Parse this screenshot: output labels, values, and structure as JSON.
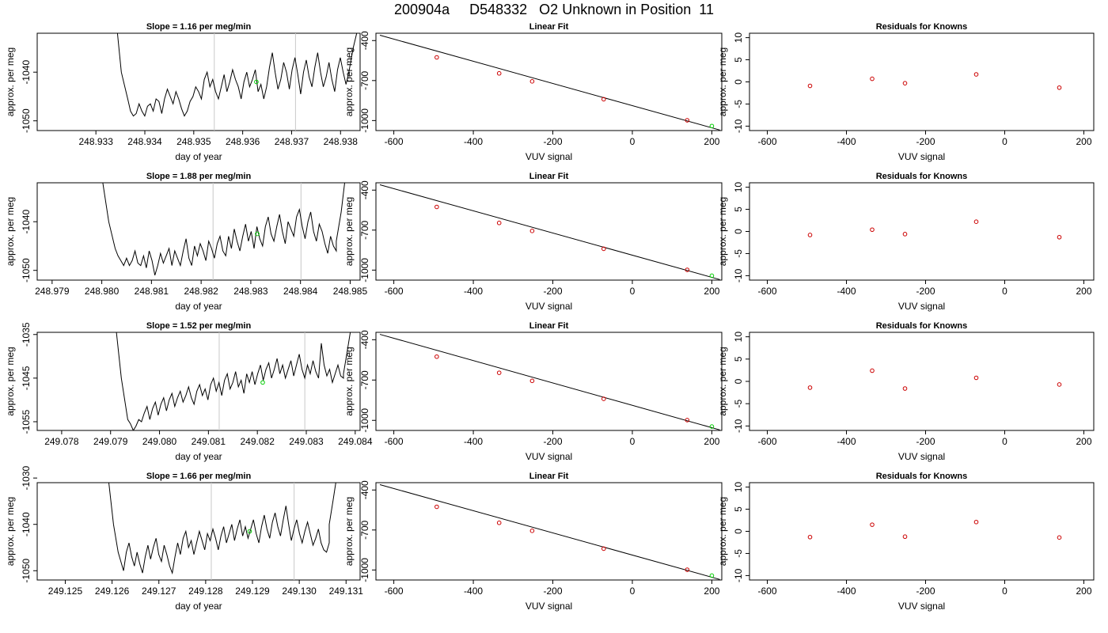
{
  "figure": {
    "title": "200904a     D548332   O2 Unknown in Position  11"
  },
  "colors": {
    "trace": "#000000",
    "gridline": "#c8c8c8",
    "known_point": "#cc0000",
    "unknown_point": "#00cc00",
    "fit_line": "#000000"
  },
  "chart_data": [
    {
      "type": "line",
      "panel": "timeseries",
      "row": 1,
      "title": "Slope =  1.16  per meg/min",
      "xlabel": "day of year",
      "ylabel": "approx. per meg",
      "xlim": [
        248.9318,
        248.9384
      ],
      "ylim": [
        -1052,
        -1032
      ],
      "xticks": [
        "248.933",
        "248.934",
        "248.935",
        "248.936",
        "248.937",
        "248.938"
      ],
      "xtick_values": [
        248.933,
        248.934,
        248.935,
        248.936,
        248.937,
        248.938
      ],
      "yticks": [
        "-1040",
        "-1050"
      ],
      "ytick_values": [
        -1040,
        -1050
      ],
      "vlines": [
        248.93542,
        248.93708
      ],
      "x_start": 248.93365,
      "x_end": 248.93817,
      "values": [
        -1045.5,
        -1048,
        -1049,
        -1048.5,
        -1046.5,
        -1048,
        -1049,
        -1047,
        -1046.5,
        -1048,
        -1045.5,
        -1046,
        -1048.5,
        -1045.5,
        -1043.5,
        -1045,
        -1046.5,
        -1044,
        -1045.5,
        -1047.5,
        -1049,
        -1048,
        -1046,
        -1045,
        -1043,
        -1044,
        -1045.5,
        -1041.5,
        -1040,
        -1043,
        -1041.5,
        -1044,
        -1045.5,
        -1043,
        -1040.5,
        -1044,
        -1042,
        -1039.5,
        -1041.5,
        -1043,
        -1045.5,
        -1042,
        -1040,
        -1043,
        -1041.5,
        -1039.5,
        -1044,
        -1042.5,
        -1045.5,
        -1043,
        -1039,
        -1036,
        -1040,
        -1043.5,
        -1041.5,
        -1038,
        -1040,
        -1043.5,
        -1039.5,
        -1037,
        -1040.5,
        -1044.5,
        -1040,
        -1037.5,
        -1041,
        -1043,
        -1039,
        -1036,
        -1040,
        -1043,
        -1041,
        -1038,
        -1041.5,
        -1044,
        -1039.5,
        -1037,
        -1040,
        -1042.5,
        -1040
      ],
      "lead_in": [
        [
          248.93344,
          -1032
        ],
        [
          248.93352,
          -1040
        ],
        [
          248.93365,
          -1045.5
        ]
      ],
      "lead_out": [
        [
          248.93817,
          -1040
        ],
        [
          248.93826,
          -1035
        ],
        [
          248.93833,
          -1032
        ]
      ],
      "unknown_point": [
        248.93628,
        -1042
      ]
    },
    {
      "type": "scatter",
      "panel": "linear-fit",
      "row": 1,
      "title": "Linear Fit",
      "xlabel": "VUV signal",
      "ylabel": "approx. per meg",
      "xlim": [
        -645,
        225
      ],
      "ylim": [
        -1075,
        -345
      ],
      "xticks": [
        "-600",
        "-400",
        "-200",
        "0",
        "200"
      ],
      "xtick_values": [
        -600,
        -400,
        -200,
        0,
        200
      ],
      "yticks": [
        "-400",
        "-700",
        "-1000"
      ],
      "ytick_values": [
        -400,
        -700,
        -1000
      ],
      "knowns": {
        "x": [
          -492,
          -335,
          -252,
          -72,
          138
        ],
        "y": [
          -526,
          -646,
          -706,
          -840,
          -998
        ]
      },
      "unknown": {
        "x": [
          200
        ],
        "y": [
          -1041
        ]
      },
      "fit_line": [
        [
          -635,
          -360
        ],
        [
          220,
          -1071
        ]
      ]
    },
    {
      "type": "scatter",
      "panel": "residuals",
      "row": 1,
      "title": "Residuals for Knowns",
      "xlabel": "VUV signal",
      "ylabel": "approx. per meg",
      "xlim": [
        -645,
        225
      ],
      "ylim": [
        -11,
        11
      ],
      "xticks": [
        "-600",
        "-400",
        "-200",
        "0",
        "200"
      ],
      "xtick_values": [
        -600,
        -400,
        -200,
        0,
        200
      ],
      "yticks": [
        "-10",
        "-5",
        "0",
        "5",
        "10"
      ],
      "ytick_values": [
        -10,
        -5,
        0,
        5,
        10
      ],
      "x": [
        -492,
        -335,
        -252,
        -72,
        138
      ],
      "y": [
        -0.9,
        0.7,
        -0.3,
        1.7,
        -1.3
      ]
    },
    {
      "type": "line",
      "panel": "timeseries",
      "row": 2,
      "title": "Slope =  1.88  per meg/min",
      "xlabel": "day of year",
      "ylabel": "approx. per meg",
      "xlim": [
        248.9787,
        248.9852
      ],
      "ylim": [
        -1052,
        -1032
      ],
      "xticks": [
        "248.979",
        "248.980",
        "248.981",
        "248.982",
        "248.983",
        "248.984",
        "248.985"
      ],
      "xtick_values": [
        248.979,
        248.98,
        248.981,
        248.982,
        248.983,
        248.984,
        248.985
      ],
      "yticks": [
        "-1040",
        "-1050"
      ],
      "ytick_values": [
        -1040,
        -1050
      ],
      "vlines": [
        248.98224,
        248.98401
      ],
      "x_start": 248.98027,
      "x_end": 248.98472,
      "values": [
        -1045.5,
        -1047,
        -1048,
        -1049,
        -1047.5,
        -1049,
        -1048,
        -1046,
        -1048.5,
        -1049,
        -1047,
        -1049.5,
        -1046,
        -1048,
        -1051,
        -1049,
        -1046.5,
        -1048.5,
        -1047,
        -1045.5,
        -1049,
        -1046,
        -1047.5,
        -1049,
        -1046,
        -1043.5,
        -1047.5,
        -1049,
        -1045,
        -1047,
        -1044.5,
        -1046,
        -1048,
        -1044,
        -1045.5,
        -1047.5,
        -1044.5,
        -1043,
        -1046,
        -1047,
        -1043,
        -1045.5,
        -1041.5,
        -1044,
        -1046,
        -1043,
        -1040.5,
        -1044,
        -1042,
        -1045.5,
        -1041,
        -1043.5,
        -1045,
        -1041,
        -1039,
        -1042.5,
        -1044,
        -1041,
        -1038.5,
        -1042,
        -1044.5,
        -1040,
        -1041.5,
        -1043,
        -1039,
        -1037.5,
        -1041,
        -1043.5,
        -1040,
        -1038,
        -1042,
        -1044,
        -1040.5,
        -1042,
        -1044.5,
        -1046.5,
        -1043,
        -1045,
        -1046
      ],
      "lead_in": [
        [
          248.98002,
          -1032
        ],
        [
          248.98014,
          -1040
        ],
        [
          248.98027,
          -1045.5
        ]
      ],
      "lead_out": [
        [
          248.98472,
          -1044
        ],
        [
          248.98482,
          -1038
        ],
        [
          248.98489,
          -1032
        ]
      ],
      "unknown_point": [
        248.98313,
        -1042.5
      ]
    },
    {
      "type": "scatter",
      "panel": "linear-fit",
      "row": 2,
      "title": "Linear Fit",
      "xlabel": "VUV signal",
      "ylabel": "approx. per meg",
      "xlim": [
        -645,
        225
      ],
      "ylim": [
        -1075,
        -345
      ],
      "xticks": [
        "-600",
        "-400",
        "-200",
        "0",
        "200"
      ],
      "xtick_values": [
        -600,
        -400,
        -200,
        0,
        200
      ],
      "yticks": [
        "-400",
        "-700",
        "-1000"
      ],
      "ytick_values": [
        -400,
        -700,
        -1000
      ],
      "knowns": {
        "x": [
          -492,
          -335,
          -252,
          -72,
          138
        ],
        "y": [
          -526,
          -646,
          -706,
          -840,
          -998
        ]
      },
      "unknown": {
        "x": [
          200
        ],
        "y": [
          -1042
        ]
      },
      "fit_line": [
        [
          -635,
          -360
        ],
        [
          220,
          -1071
        ]
      ]
    },
    {
      "type": "scatter",
      "panel": "residuals",
      "row": 2,
      "title": "Residuals for Knowns",
      "xlabel": "VUV signal",
      "ylabel": "approx. per meg",
      "xlim": [
        -645,
        225
      ],
      "ylim": [
        -11,
        11
      ],
      "xticks": [
        "-600",
        "-400",
        "-200",
        "0",
        "200"
      ],
      "xtick_values": [
        -600,
        -400,
        -200,
        0,
        200
      ],
      "yticks": [
        "-10",
        "-5",
        "0",
        "5",
        "10"
      ],
      "ytick_values": [
        -10,
        -5,
        0,
        5,
        10
      ],
      "x": [
        -492,
        -335,
        -252,
        -72,
        138
      ],
      "y": [
        -0.8,
        0.4,
        -0.6,
        2.2,
        -1.3
      ]
    },
    {
      "type": "line",
      "panel": "timeseries",
      "row": 3,
      "title": "Slope =  1.52  per meg/min",
      "xlabel": "day of year",
      "ylabel": "approx. per meg",
      "xlim": [
        249.0775,
        249.0841
      ],
      "ylim": [
        -1057,
        -1034.5
      ],
      "xticks": [
        "249.078",
        "249.079",
        "249.080",
        "249.081",
        "249.082",
        "249.083",
        "249.084"
      ],
      "xtick_values": [
        249.078,
        249.079,
        249.08,
        249.081,
        249.082,
        249.083,
        249.084
      ],
      "yticks": [
        "-1035",
        "-1045",
        "-1055"
      ],
      "ytick_values": [
        -1035,
        -1045,
        -1055
      ],
      "vlines": [
        249.08122,
        249.08297
      ],
      "x_start": 249.07935,
      "x_end": 249.08376,
      "values": [
        -1054.5,
        -1055.5,
        -1057,
        -1056,
        -1054.5,
        -1055,
        -1053,
        -1051.5,
        -1054.5,
        -1052,
        -1050.5,
        -1053.5,
        -1051,
        -1049.5,
        -1052.5,
        -1050,
        -1048.5,
        -1051.5,
        -1049.5,
        -1048,
        -1050.5,
        -1049,
        -1047,
        -1049.5,
        -1051,
        -1048,
        -1046.5,
        -1049,
        -1047.5,
        -1050,
        -1046.5,
        -1045,
        -1048,
        -1046,
        -1049,
        -1045.5,
        -1044,
        -1047.5,
        -1046,
        -1043.5,
        -1047,
        -1045.5,
        -1048.5,
        -1044,
        -1046,
        -1043.5,
        -1046.5,
        -1044,
        -1042,
        -1045.5,
        -1043,
        -1041.5,
        -1045,
        -1043,
        -1040.5,
        -1044,
        -1042,
        -1045,
        -1043,
        -1041,
        -1044.5,
        -1042,
        -1039.5,
        -1043,
        -1045,
        -1042,
        -1044,
        -1041,
        -1043.5,
        -1045,
        -1037,
        -1042,
        -1044.5,
        -1043,
        -1046,
        -1044,
        -1042,
        -1044.5,
        -1045
      ],
      "lead_in": [
        [
          249.07912,
          -1034.5
        ],
        [
          249.07922,
          -1045
        ],
        [
          249.07935,
          -1054.5
        ]
      ],
      "lead_out": [
        [
          249.08376,
          -1044
        ],
        [
          249.08385,
          -1038
        ],
        [
          249.0839,
          -1034.5
        ]
      ],
      "unknown_point": [
        249.08211,
        -1046
      ]
    },
    {
      "type": "scatter",
      "panel": "linear-fit",
      "row": 3,
      "title": "Linear Fit",
      "xlabel": "VUV signal",
      "ylabel": "approx. per meg",
      "xlim": [
        -645,
        225
      ],
      "ylim": [
        -1075,
        -345
      ],
      "xticks": [
        "-600",
        "-400",
        "-200",
        "0",
        "200"
      ],
      "xtick_values": [
        -600,
        -400,
        -200,
        0,
        200
      ],
      "yticks": [
        "-400",
        "-700",
        "-1000"
      ],
      "ytick_values": [
        -400,
        -700,
        -1000
      ],
      "knowns": {
        "x": [
          -492,
          -335,
          -252,
          -72,
          138
        ],
        "y": [
          -526,
          -646,
          -706,
          -840,
          -998
        ]
      },
      "unknown": {
        "x": [
          200
        ],
        "y": [
          -1046
        ]
      },
      "fit_line": [
        [
          -635,
          -360
        ],
        [
          220,
          -1071
        ]
      ]
    },
    {
      "type": "scatter",
      "panel": "residuals",
      "row": 3,
      "title": "Residuals for Knowns",
      "xlabel": "VUV signal",
      "ylabel": "approx. per meg",
      "xlim": [
        -645,
        225
      ],
      "ylim": [
        -11,
        11
      ],
      "xticks": [
        "-600",
        "-400",
        "-200",
        "0",
        "200"
      ],
      "xtick_values": [
        -600,
        -400,
        -200,
        0,
        200
      ],
      "yticks": [
        "-10",
        "-5",
        "0",
        "5",
        "10"
      ],
      "ytick_values": [
        -10,
        -5,
        0,
        5,
        10
      ],
      "x": [
        -492,
        -335,
        -252,
        -72,
        138
      ],
      "y": [
        -1.4,
        2.4,
        -1.6,
        0.8,
        -0.7
      ]
    },
    {
      "type": "line",
      "panel": "timeseries",
      "row": 4,
      "title": "Slope =  1.66  per meg/min",
      "xlabel": "day of year",
      "ylabel": "approx. per meg",
      "xlim": [
        249.1244,
        249.1313
      ],
      "ylim": [
        -1052,
        -1031
      ],
      "xticks": [
        "249.125",
        "249.126",
        "249.127",
        "249.128",
        "249.129",
        "249.130",
        "249.131"
      ],
      "xtick_values": [
        249.125,
        249.126,
        249.127,
        249.128,
        249.129,
        249.13,
        249.131
      ],
      "yticks": [
        "-1030",
        "-1040",
        "-1050"
      ],
      "ytick_values": [
        -1030,
        -1040,
        -1050
      ],
      "vlines": [
        249.12812,
        249.12989
      ],
      "x_start": 249.12613,
      "x_end": 249.13064,
      "values": [
        -1046,
        -1048,
        -1050,
        -1046,
        -1044,
        -1047,
        -1049,
        -1046,
        -1048.5,
        -1050.5,
        -1047,
        -1044.5,
        -1047.5,
        -1045,
        -1043,
        -1046.5,
        -1048,
        -1044.5,
        -1046.5,
        -1049,
        -1050.5,
        -1047,
        -1044,
        -1046.5,
        -1043,
        -1041.5,
        -1045,
        -1043.5,
        -1046.5,
        -1044,
        -1041.5,
        -1043.5,
        -1045.5,
        -1042,
        -1043.5,
        -1041,
        -1043,
        -1045.5,
        -1042.5,
        -1040.5,
        -1044,
        -1042,
        -1040,
        -1043.5,
        -1041,
        -1039,
        -1042.5,
        -1040.5,
        -1043,
        -1041,
        -1039,
        -1042,
        -1044,
        -1040.5,
        -1038,
        -1041,
        -1043,
        -1039.5,
        -1037.5,
        -1040.5,
        -1042.5,
        -1039,
        -1036,
        -1040,
        -1043.5,
        -1041,
        -1039,
        -1042,
        -1044,
        -1041.5,
        -1039.5,
        -1042,
        -1044.5,
        -1043,
        -1041,
        -1044,
        -1045.5,
        -1046,
        -1044
      ],
      "lead_in": [
        [
          249.12593,
          -1031
        ],
        [
          249.12603,
          -1040
        ],
        [
          249.12613,
          -1046
        ]
      ],
      "lead_out": [
        [
          249.13064,
          -1040
        ],
        [
          249.13072,
          -1035
        ],
        [
          249.13078,
          -1031
        ]
      ],
      "unknown_point": [
        249.12894,
        -1041.5
      ]
    },
    {
      "type": "scatter",
      "panel": "linear-fit",
      "row": 4,
      "title": "Linear Fit",
      "xlabel": "VUV signal",
      "ylabel": "approx. per meg",
      "xlim": [
        -645,
        225
      ],
      "ylim": [
        -1075,
        -345
      ],
      "xticks": [
        "-600",
        "-400",
        "-200",
        "0",
        "200"
      ],
      "xtick_values": [
        -600,
        -400,
        -200,
        0,
        200
      ],
      "yticks": [
        "-400",
        "-700",
        "-1000"
      ],
      "ytick_values": [
        -400,
        -700,
        -1000
      ],
      "knowns": {
        "x": [
          -492,
          -335,
          -252,
          -72,
          138
        ],
        "y": [
          -526,
          -646,
          -706,
          -840,
          -998
        ]
      },
      "unknown": {
        "x": [
          200
        ],
        "y": [
          -1042
        ]
      },
      "fit_line": [
        [
          -635,
          -360
        ],
        [
          220,
          -1071
        ]
      ]
    },
    {
      "type": "scatter",
      "panel": "residuals",
      "row": 4,
      "title": "Residuals for Knowns",
      "xlabel": "VUV signal",
      "ylabel": "approx. per meg",
      "xlim": [
        -645,
        225
      ],
      "ylim": [
        -11,
        11
      ],
      "xticks": [
        "-600",
        "-400",
        "-200",
        "0",
        "200"
      ],
      "xtick_values": [
        -600,
        -400,
        -200,
        0,
        200
      ],
      "yticks": [
        "-10",
        "-5",
        "0",
        "5",
        "10"
      ],
      "ytick_values": [
        -10,
        -5,
        0,
        5,
        10
      ],
      "x": [
        -492,
        -335,
        -252,
        -72,
        138
      ],
      "y": [
        -1.3,
        1.5,
        -1.2,
        2.1,
        -1.4
      ]
    }
  ]
}
